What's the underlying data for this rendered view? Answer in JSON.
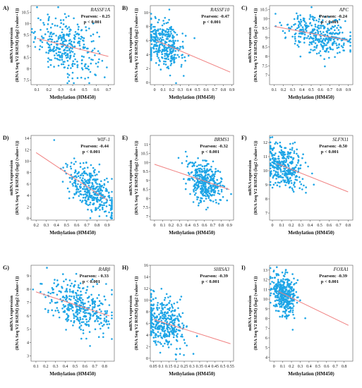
{
  "figure": {
    "xlabel": "Methylation (HM450)",
    "ylabel_line1": "mRNA expression",
    "ylabel_line2": "(RNA Seq V2 RSEM) (log2 (value+1))",
    "point_color": "#1ea5e6",
    "fit_color": "#f08080"
  },
  "chart_data": [
    {
      "panel": "A)",
      "type": "scatter",
      "gene": "RASSF1A",
      "pearson": "Pearson: - 0.25",
      "pvalue": "p < 0.001",
      "xlim": [
        0.05,
        0.75
      ],
      "ylim": [
        7.3,
        10.8
      ],
      "xticks": [
        "0.1",
        "0.2",
        "0.3",
        "0.4",
        "0.5",
        "0.6",
        "0.7"
      ],
      "yticks": [
        "7.5",
        "8",
        "8.5",
        "9",
        "9.5",
        "10",
        "10.5"
      ],
      "fit": [
        [
          0.1,
          9.35
        ],
        [
          0.7,
          8.55
        ]
      ],
      "x_center": 0.35,
      "x_spread": 0.13,
      "y_noise": 0.6,
      "n": 320
    },
    {
      "panel": "B)",
      "type": "scatter",
      "gene": "RASSF10",
      "pearson": "Pearson: -0.47",
      "pvalue": "p < 0.001",
      "xlim": [
        -0.05,
        0.92
      ],
      "ylim": [
        -0.3,
        11
      ],
      "xticks": [
        "0",
        "0.1",
        "0.2",
        "0.3",
        "0.4",
        "0.5",
        "0.6",
        "0.7",
        "0.8",
        "0.9"
      ],
      "yticks": [
        "0",
        "2",
        "4",
        "6",
        "8",
        "10"
      ],
      "fit": [
        [
          0.02,
          6.0
        ],
        [
          0.88,
          1.5
        ]
      ],
      "x_center": 0.1,
      "x_spread": 0.12,
      "y_noise": 1.6,
      "n": 340
    },
    {
      "panel": "C)",
      "type": "scatter",
      "gene": "APC",
      "pearson": "Pearson: -0.24",
      "pvalue": "p < 0.001",
      "xlim": [
        0.05,
        0.95
      ],
      "ylim": [
        6.5,
        10.7
      ],
      "xticks": [
        "0.1",
        "0.2",
        "0.3",
        "0.4",
        "0.5",
        "0.6",
        "0.7",
        "0.8",
        "0.9"
      ],
      "yticks": [
        "7",
        "7.5",
        "8",
        "8.5",
        "9",
        "9.5",
        "10",
        "10.5"
      ],
      "fit": [
        [
          0.1,
          9.6
        ],
        [
          0.9,
          8.85
        ]
      ],
      "x_center": 0.6,
      "x_spread": 0.18,
      "y_noise": 0.5,
      "n": 340
    },
    {
      "panel": "D)",
      "type": "scatter",
      "gene": "WIF-1",
      "pearson": "Pearson: -0.44",
      "pvalue": "p < 0.001",
      "xlim": [
        0.15,
        0.97
      ],
      "ylim": [
        -0.3,
        14.5
      ],
      "xticks": [
        "0.2",
        "0.3",
        "0.4",
        "0.5",
        "0.6",
        "0.7",
        "0.8",
        "0.9"
      ],
      "yticks": [
        "0",
        "2",
        "4",
        "6",
        "8",
        "10",
        "12",
        "14"
      ],
      "fit": [
        [
          0.2,
          11.5
        ],
        [
          0.9,
          3.2
        ]
      ],
      "x_center": 0.75,
      "x_spread": 0.13,
      "y_noise": 2.0,
      "n": 360
    },
    {
      "panel": "E)",
      "type": "scatter",
      "gene": "BRMS1",
      "pearson": "Pearson: -0.32",
      "pvalue": "p < 0.001",
      "xlim": [
        -0.05,
        0.95
      ],
      "ylim": [
        6.8,
        11.5
      ],
      "xticks": [
        "0",
        "0.1",
        "0.2",
        "0.3",
        "0.4",
        "0.5",
        "0.6",
        "0.7",
        "0.8",
        "0.9"
      ],
      "yticks": [
        "7",
        "7.5",
        "8",
        "8.5",
        "9",
        "9.5",
        "10",
        "10.5",
        "11"
      ],
      "fit": [
        [
          0.0,
          9.9
        ],
        [
          0.9,
          8.5
        ]
      ],
      "x_center": 0.6,
      "x_spread": 0.1,
      "y_noise": 0.55,
      "n": 360
    },
    {
      "panel": "F)",
      "type": "scatter",
      "gene": "SLFN11",
      "pearson": "Pearson: -0.50",
      "pvalue": "p < 0.001",
      "xlim": [
        -0.03,
        0.85
      ],
      "ylim": [
        6.5,
        12.5
      ],
      "xticks": [
        "0",
        "0.1",
        "0.2",
        "0.3",
        "0.4",
        "0.5",
        "0.6",
        "0.7",
        "0.8"
      ],
      "yticks": [
        "7",
        "8",
        "9",
        "10",
        "11",
        "12"
      ],
      "fit": [
        [
          0.05,
          10.5
        ],
        [
          0.8,
          8.5
        ]
      ],
      "x_center": 0.12,
      "x_spread": 0.1,
      "y_noise": 0.8,
      "n": 340
    },
    {
      "panel": "G)",
      "type": "scatter",
      "gene": "RARβ",
      "pearson": "Pearson: - 0.33",
      "pvalue": "p < 0.001",
      "xlim": [
        0.05,
        0.9
      ],
      "ylim": [
        2.6,
        9.8
      ],
      "xticks": [
        "0.1",
        "0.2",
        "0.3",
        "0.4",
        "0.5",
        "0.6",
        "0.7",
        "0.8"
      ],
      "yticks": [
        "3",
        "4",
        "5",
        "6",
        "7",
        "8",
        "9"
      ],
      "fit": [
        [
          0.1,
          7.8
        ],
        [
          0.85,
          6.0
        ]
      ],
      "x_center": 0.55,
      "x_spread": 0.17,
      "y_noise": 0.9,
      "n": 340
    },
    {
      "panel": "H)",
      "type": "scatter",
      "gene": "SHISA3",
      "pearson": "Pearson: -0.39",
      "pvalue": "p < 0.001",
      "xlim": [
        0.03,
        0.57
      ],
      "ylim": [
        -0.5,
        16
      ],
      "xticks": [
        "0.05",
        "0.1",
        "0.15",
        "0.2",
        "0.25",
        "0.3",
        "0.35",
        "0.4",
        "0.45",
        "0.5",
        "0.55"
      ],
      "yticks": [
        "0",
        "2",
        "4",
        "6",
        "8",
        "10",
        "12",
        "14",
        "16"
      ],
      "fit": [
        [
          0.05,
          6.7
        ],
        [
          0.55,
          2.5
        ]
      ],
      "x_center": 0.12,
      "x_spread": 0.07,
      "y_noise": 2.2,
      "n": 360
    },
    {
      "panel": "I)",
      "type": "scatter",
      "gene": "FOXA1",
      "pearson": "Pearson: -0.39",
      "pvalue": "p < 0.001",
      "xlim": [
        -0.05,
        0.9
      ],
      "ylim": [
        3.6,
        13.5
      ],
      "xticks": [
        "0",
        "0.1",
        "0.2",
        "0.3",
        "0.4",
        "0.5",
        "0.6",
        "0.7",
        "0.8"
      ],
      "yticks": [
        "4",
        "5",
        "6",
        "7",
        "8",
        "9",
        "10",
        "11",
        "12",
        "13"
      ],
      "fit": [
        [
          0.05,
          10.8
        ],
        [
          0.85,
          7.3
        ]
      ],
      "x_center": 0.12,
      "x_spread": 0.07,
      "y_noise": 1.0,
      "n": 360
    }
  ]
}
